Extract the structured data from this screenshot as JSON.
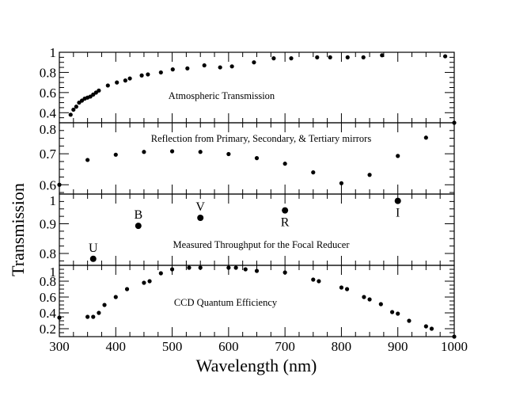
{
  "chart_data": {
    "type": "scatter",
    "xlabel": "Wavelength (nm)",
    "ylabel": "Transmission",
    "xlim": [
      300,
      1000
    ],
    "xticks": [
      300,
      400,
      500,
      600,
      700,
      800,
      900,
      1000
    ],
    "panels": [
      {
        "title": "Atmospheric Transmission",
        "ylim": [
          0.3,
          1
        ],
        "yticks": [
          0.4,
          0.6,
          0.8,
          1
        ],
        "ytick_labels": [
          "0.4",
          "0.6",
          "0.8",
          "1"
        ],
        "x": [
          320,
          325,
          330,
          335,
          340,
          345,
          350,
          355,
          360,
          365,
          370,
          386,
          402,
          417,
          425,
          446,
          457,
          480,
          501,
          527,
          557,
          585,
          606,
          645,
          680,
          711,
          757,
          780,
          811,
          839,
          872,
          984
        ],
        "y": [
          0.38,
          0.43,
          0.46,
          0.5,
          0.52,
          0.54,
          0.55,
          0.56,
          0.58,
          0.6,
          0.62,
          0.67,
          0.7,
          0.72,
          0.74,
          0.77,
          0.78,
          0.8,
          0.83,
          0.84,
          0.87,
          0.85,
          0.86,
          0.9,
          0.94,
          0.94,
          0.95,
          0.95,
          0.95,
          0.95,
          0.97,
          0.96
        ]
      },
      {
        "title": "Reflection from Primary, Secondary, & Tertiary mirrors",
        "ylim": [
          0.57,
          0.8
        ],
        "yticks": [
          0.6,
          0.7,
          0.8
        ],
        "ytick_labels": [
          "0.6",
          "0.7",
          "0.8"
        ],
        "x": [
          300,
          350,
          400,
          450,
          500,
          550,
          600,
          650,
          700,
          750,
          800,
          850,
          900,
          950,
          1000
        ],
        "y": [
          0.6,
          0.68,
          0.697,
          0.706,
          0.708,
          0.706,
          0.699,
          0.686,
          0.668,
          0.64,
          0.605,
          0.632,
          0.693,
          0.752,
          0.8
        ]
      },
      {
        "title": "Measured Throughput for the Focal Reducer",
        "ylim": [
          0.76,
          1
        ],
        "yticks": [
          0.8,
          0.9,
          1
        ],
        "ytick_labels": [
          "0.8",
          "0.9",
          "1"
        ],
        "x": [
          360,
          440,
          550,
          700,
          900
        ],
        "y": [
          0.782,
          0.893,
          0.92,
          0.945,
          0.977
        ],
        "point_labels": [
          "U",
          "B",
          "V",
          "R",
          "I"
        ]
      },
      {
        "title": "CCD Quantum Efficiency",
        "ylim": [
          0.1,
          1
        ],
        "yticks": [
          0.2,
          0.4,
          0.6,
          0.8,
          1
        ],
        "ytick_labels": [
          "0.2",
          "0.4",
          "0.6",
          "0.8",
          "1"
        ],
        "x": [
          300,
          350,
          360,
          370,
          380,
          400,
          420,
          450,
          460,
          480,
          500,
          530,
          550,
          600,
          613,
          630,
          650,
          700,
          750,
          760,
          800,
          810,
          840,
          850,
          870,
          890,
          900,
          920,
          950,
          960,
          1000
        ],
        "y": [
          0.34,
          0.35,
          0.35,
          0.4,
          0.5,
          0.6,
          0.7,
          0.78,
          0.8,
          0.9,
          0.95,
          0.97,
          0.97,
          0.97,
          0.97,
          0.95,
          0.93,
          0.91,
          0.82,
          0.8,
          0.72,
          0.7,
          0.6,
          0.57,
          0.51,
          0.41,
          0.39,
          0.3,
          0.23,
          0.2,
          0.1
        ]
      }
    ],
    "grid": false,
    "legend": "none"
  }
}
